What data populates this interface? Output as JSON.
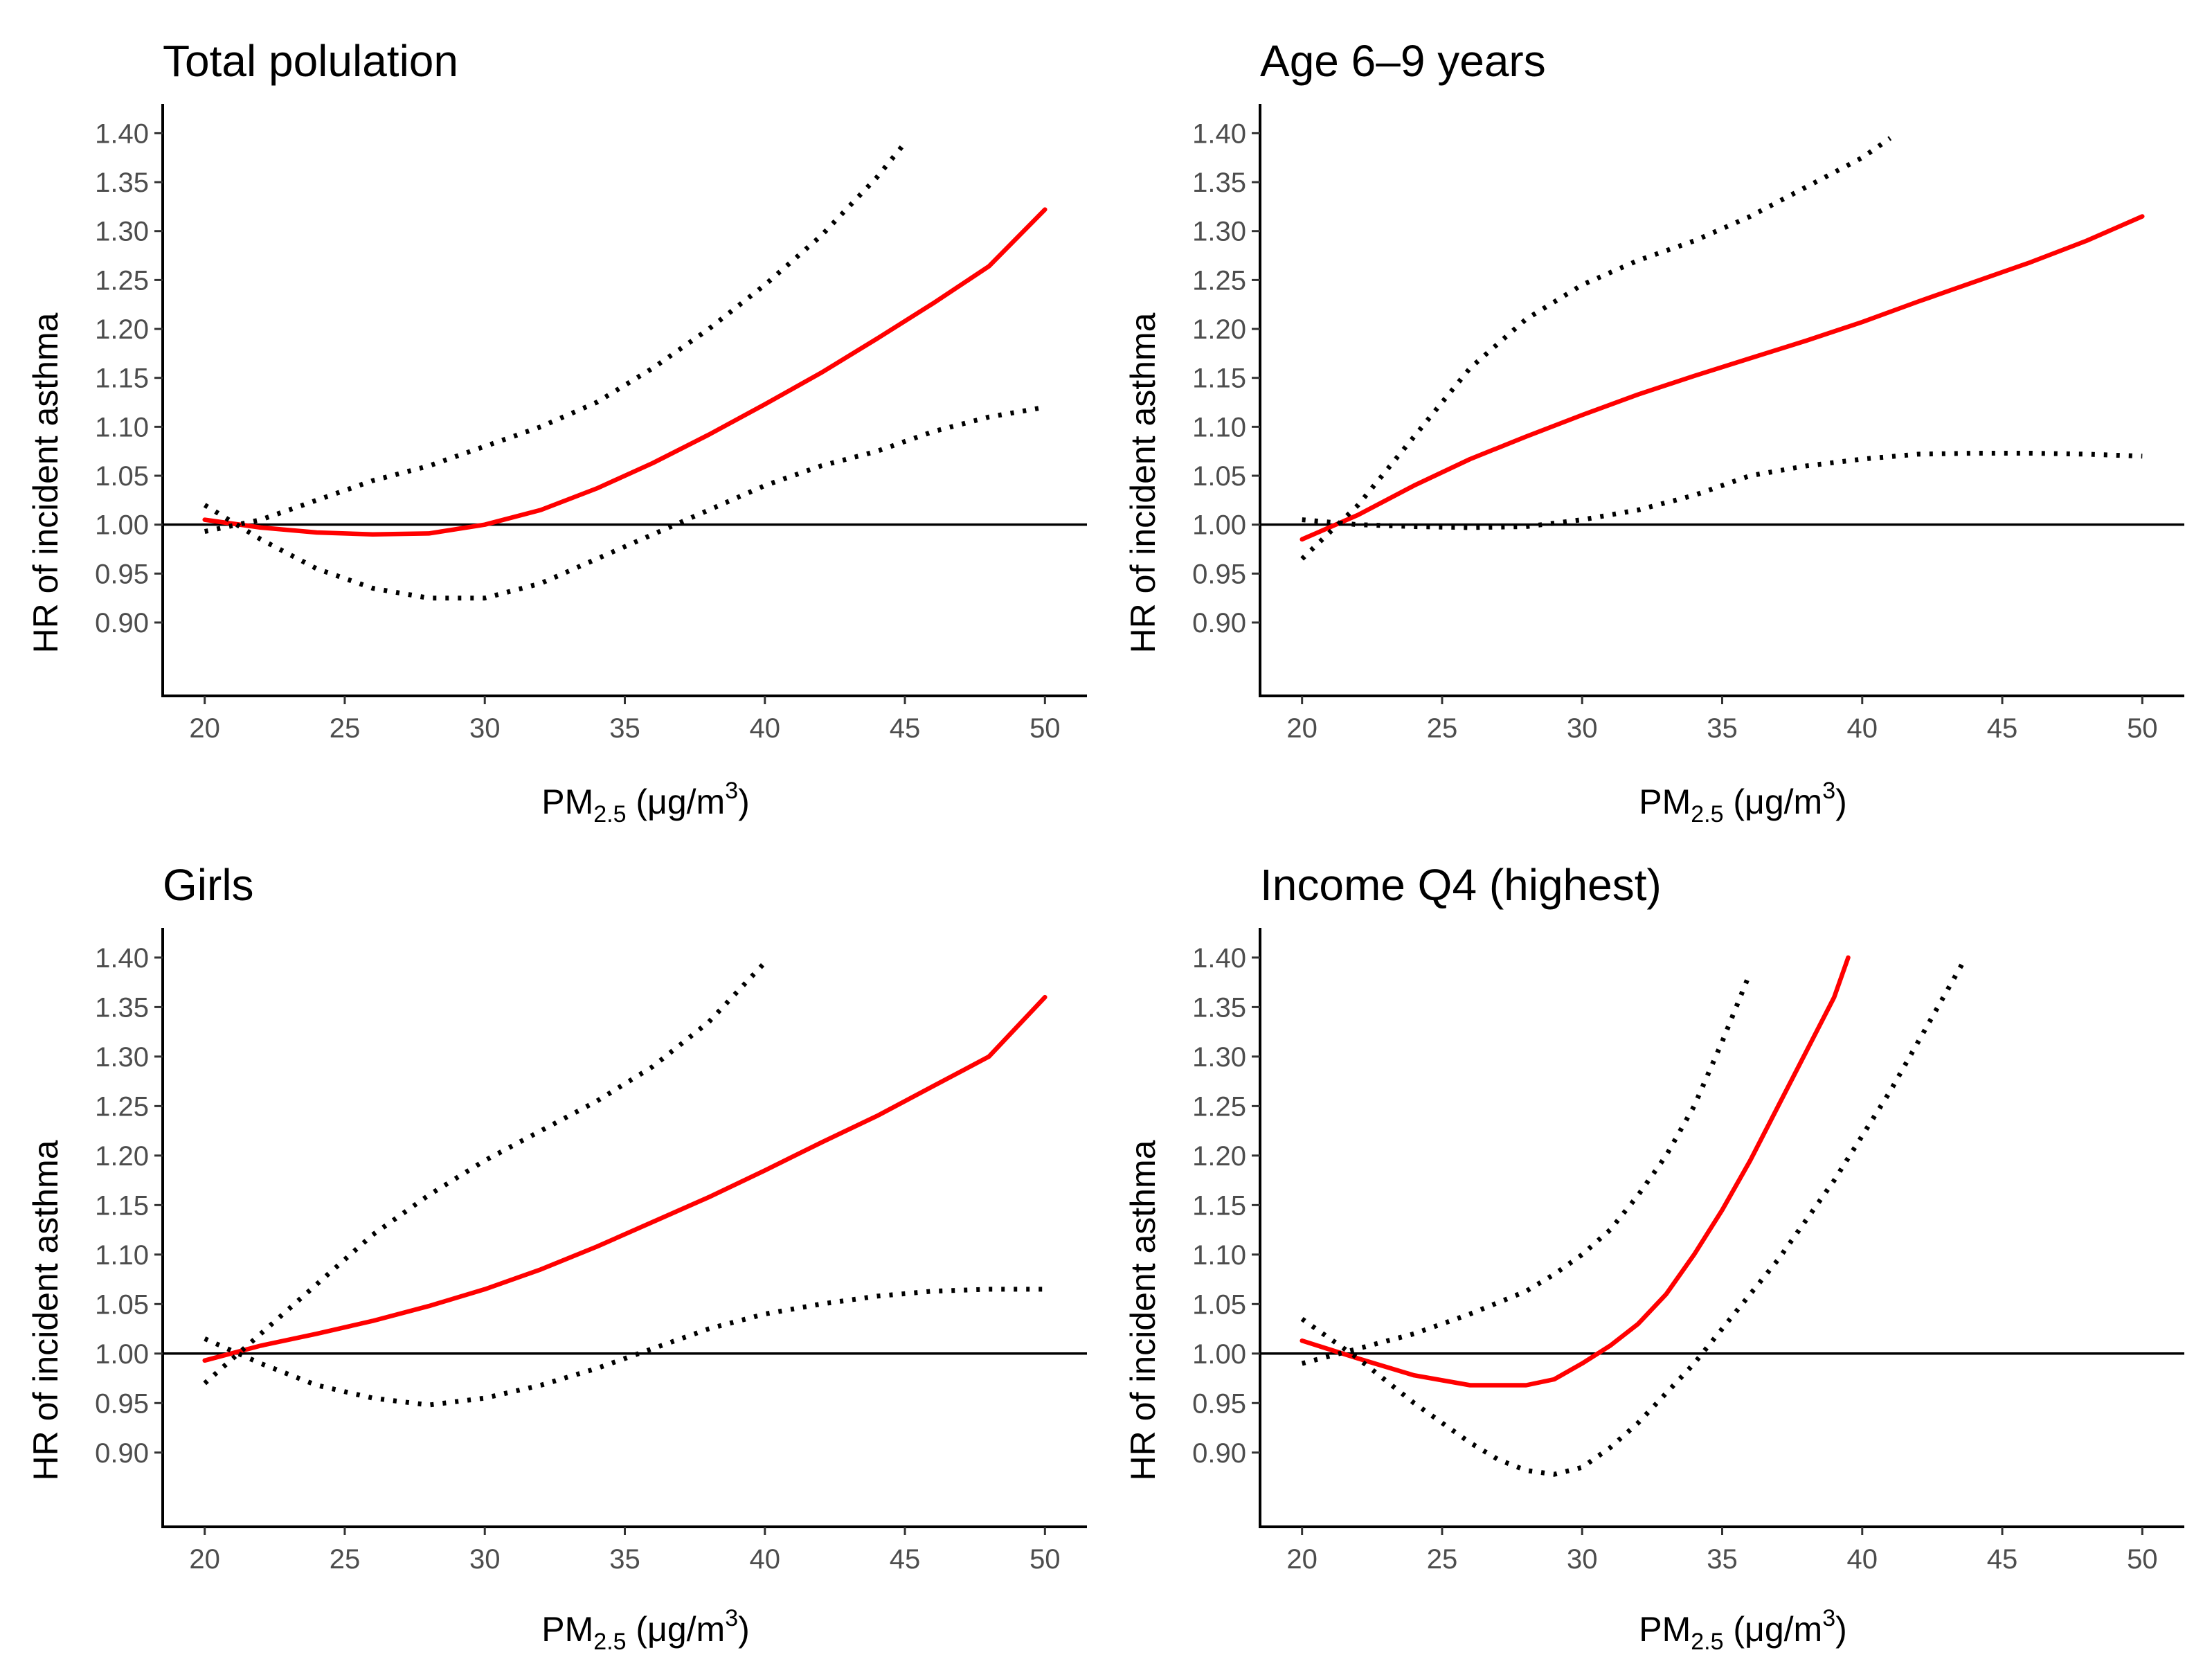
{
  "chart_data": [
    {
      "type": "line",
      "title": "Total polulation",
      "xlabel": {
        "main": "PM",
        "sub": "2.5",
        "unit": " (μg/m",
        "sup": "3",
        "close": ")"
      },
      "ylabel": "HR of incident asthma",
      "xlim": [
        18.5,
        51.5
      ],
      "ylim": [
        0.825,
        1.43
      ],
      "xticks": [
        20,
        25,
        30,
        35,
        40,
        45,
        50
      ],
      "yticks": [
        0.9,
        0.95,
        1.0,
        1.05,
        1.1,
        1.15,
        1.2,
        1.25,
        1.3,
        1.35,
        1.4
      ],
      "reference_line": 1.0,
      "series": [
        {
          "name": "HR",
          "color": "#ff0000",
          "style": "solid",
          "x": [
            20,
            22,
            24,
            26,
            28,
            30,
            32,
            34,
            36,
            38,
            40,
            42,
            44,
            46,
            48,
            50
          ],
          "y": [
            1.005,
            0.997,
            0.992,
            0.99,
            0.991,
            1.0,
            1.015,
            1.037,
            1.063,
            1.092,
            1.123,
            1.155,
            1.19,
            1.226,
            1.264,
            1.322
          ]
        },
        {
          "name": "95% CI upper",
          "color": "#000000",
          "style": "dotted",
          "x": [
            20,
            22,
            24,
            26,
            28,
            30,
            32,
            34,
            36,
            38,
            40,
            42,
            44,
            45
          ],
          "y": [
            0.993,
            1.005,
            1.025,
            1.045,
            1.06,
            1.08,
            1.1,
            1.125,
            1.16,
            1.2,
            1.245,
            1.295,
            1.355,
            1.39
          ]
        },
        {
          "name": "95% CI lower",
          "color": "#000000",
          "style": "dotted",
          "x": [
            20,
            22,
            24,
            26,
            28,
            30,
            32,
            34,
            36,
            38,
            40,
            42,
            44,
            46,
            48,
            50
          ],
          "y": [
            1.02,
            0.985,
            0.955,
            0.935,
            0.925,
            0.925,
            0.94,
            0.965,
            0.99,
            1.015,
            1.04,
            1.06,
            1.075,
            1.095,
            1.11,
            1.12
          ]
        }
      ]
    },
    {
      "type": "line",
      "title": "Age 6–9 years",
      "xlabel": {
        "main": "PM",
        "sub": "2.5",
        "unit": " (μg/m",
        "sup": "3",
        "close": ")"
      },
      "ylabel": "HR of incident asthma",
      "xlim": [
        18.5,
        51.5
      ],
      "ylim": [
        0.825,
        1.43
      ],
      "xticks": [
        20,
        25,
        30,
        35,
        40,
        45,
        50
      ],
      "yticks": [
        0.9,
        0.95,
        1.0,
        1.05,
        1.1,
        1.15,
        1.2,
        1.25,
        1.3,
        1.35,
        1.4
      ],
      "reference_line": 1.0,
      "series": [
        {
          "name": "HR",
          "color": "#ff0000",
          "style": "solid",
          "x": [
            20,
            22,
            24,
            26,
            28,
            30,
            32,
            34,
            36,
            38,
            40,
            42,
            44,
            46,
            48,
            50
          ],
          "y": [
            0.985,
            1.01,
            1.04,
            1.067,
            1.09,
            1.112,
            1.133,
            1.152,
            1.17,
            1.188,
            1.207,
            1.228,
            1.248,
            1.268,
            1.29,
            1.315
          ]
        },
        {
          "name": "95% CI upper",
          "color": "#000000",
          "style": "dotted",
          "x": [
            20,
            22,
            24,
            26,
            28,
            30,
            32,
            34,
            36,
            38,
            40,
            41
          ],
          "y": [
            0.965,
            1.02,
            1.09,
            1.16,
            1.21,
            1.245,
            1.27,
            1.29,
            1.315,
            1.345,
            1.375,
            1.395
          ]
        },
        {
          "name": "95% CI lower",
          "color": "#000000",
          "style": "dotted",
          "x": [
            20,
            22,
            24,
            26,
            28,
            30,
            32,
            34,
            36,
            38,
            40,
            42,
            44,
            46,
            48,
            50
          ],
          "y": [
            1.005,
            1.0,
            0.998,
            0.997,
            0.998,
            1.005,
            1.015,
            1.03,
            1.05,
            1.06,
            1.067,
            1.072,
            1.073,
            1.073,
            1.072,
            1.07
          ]
        }
      ]
    },
    {
      "type": "line",
      "title": "Girls",
      "xlabel": {
        "main": "PM",
        "sub": "2.5",
        "unit": " (μg/m",
        "sup": "3",
        "close": ")"
      },
      "ylabel": "HR of incident asthma",
      "xlim": [
        18.5,
        51.5
      ],
      "ylim": [
        0.825,
        1.43
      ],
      "xticks": [
        20,
        25,
        30,
        35,
        40,
        45,
        50
      ],
      "yticks": [
        0.9,
        0.95,
        1.0,
        1.05,
        1.1,
        1.15,
        1.2,
        1.25,
        1.3,
        1.35,
        1.4
      ],
      "reference_line": 1.0,
      "series": [
        {
          "name": "HR",
          "color": "#ff0000",
          "style": "solid",
          "x": [
            20,
            22,
            24,
            26,
            28,
            30,
            32,
            34,
            36,
            38,
            40,
            42,
            44,
            46,
            48,
            50
          ],
          "y": [
            0.993,
            1.008,
            1.02,
            1.033,
            1.048,
            1.065,
            1.085,
            1.108,
            1.133,
            1.158,
            1.185,
            1.213,
            1.24,
            1.27,
            1.3,
            1.36
          ]
        },
        {
          "name": "95% CI upper",
          "color": "#000000",
          "style": "dotted",
          "x": [
            20,
            22,
            24,
            26,
            28,
            30,
            32,
            34,
            36,
            38,
            40
          ],
          "y": [
            0.97,
            1.02,
            1.07,
            1.12,
            1.16,
            1.195,
            1.225,
            1.255,
            1.29,
            1.335,
            1.395
          ]
        },
        {
          "name": "95% CI lower",
          "color": "#000000",
          "style": "dotted",
          "x": [
            20,
            22,
            24,
            26,
            28,
            30,
            32,
            34,
            36,
            38,
            40,
            42,
            44,
            46,
            48,
            50
          ],
          "y": [
            1.015,
            0.99,
            0.968,
            0.955,
            0.948,
            0.955,
            0.968,
            0.985,
            1.005,
            1.025,
            1.04,
            1.05,
            1.058,
            1.063,
            1.065,
            1.065
          ]
        }
      ]
    },
    {
      "type": "line",
      "title": "Income Q4 (highest)",
      "xlabel": {
        "main": "PM",
        "sub": "2.5",
        "unit": " (μg/m",
        "sup": "3",
        "close": ")"
      },
      "ylabel": "HR of incident asthma",
      "xlim": [
        18.5,
        51.5
      ],
      "ylim": [
        0.825,
        1.43
      ],
      "xticks": [
        20,
        25,
        30,
        35,
        40,
        45,
        50
      ],
      "yticks": [
        0.9,
        0.95,
        1.0,
        1.05,
        1.1,
        1.15,
        1.2,
        1.25,
        1.3,
        1.35,
        1.4
      ],
      "reference_line": 1.0,
      "series": [
        {
          "name": "HR",
          "color": "#ff0000",
          "style": "solid",
          "x": [
            20,
            22,
            24,
            26,
            28,
            29,
            30,
            31,
            32,
            33,
            34,
            35,
            36,
            37,
            38,
            39,
            39.5
          ],
          "y": [
            1.013,
            0.995,
            0.978,
            0.968,
            0.968,
            0.974,
            0.99,
            1.008,
            1.03,
            1.06,
            1.1,
            1.145,
            1.195,
            1.25,
            1.305,
            1.36,
            1.4
          ]
        },
        {
          "name": "95% CI upper",
          "color": "#000000",
          "style": "dotted",
          "x": [
            20,
            22,
            24,
            26,
            28,
            29,
            30,
            31,
            32,
            33,
            34,
            35,
            36
          ],
          "y": [
            0.99,
            1.005,
            1.02,
            1.04,
            1.063,
            1.08,
            1.1,
            1.125,
            1.16,
            1.2,
            1.25,
            1.315,
            1.385
          ]
        },
        {
          "name": "95% CI lower",
          "color": "#000000",
          "style": "dotted",
          "x": [
            20,
            22,
            24,
            26,
            27,
            28,
            29,
            30,
            31,
            32,
            33,
            34,
            35,
            36,
            37,
            38,
            39,
            40,
            41,
            42,
            43,
            43.6
          ],
          "y": [
            1.035,
            0.995,
            0.95,
            0.91,
            0.893,
            0.882,
            0.878,
            0.885,
            0.905,
            0.93,
            0.96,
            0.99,
            1.025,
            1.06,
            1.095,
            1.135,
            1.175,
            1.22,
            1.265,
            1.315,
            1.365,
            1.395
          ]
        }
      ]
    }
  ]
}
